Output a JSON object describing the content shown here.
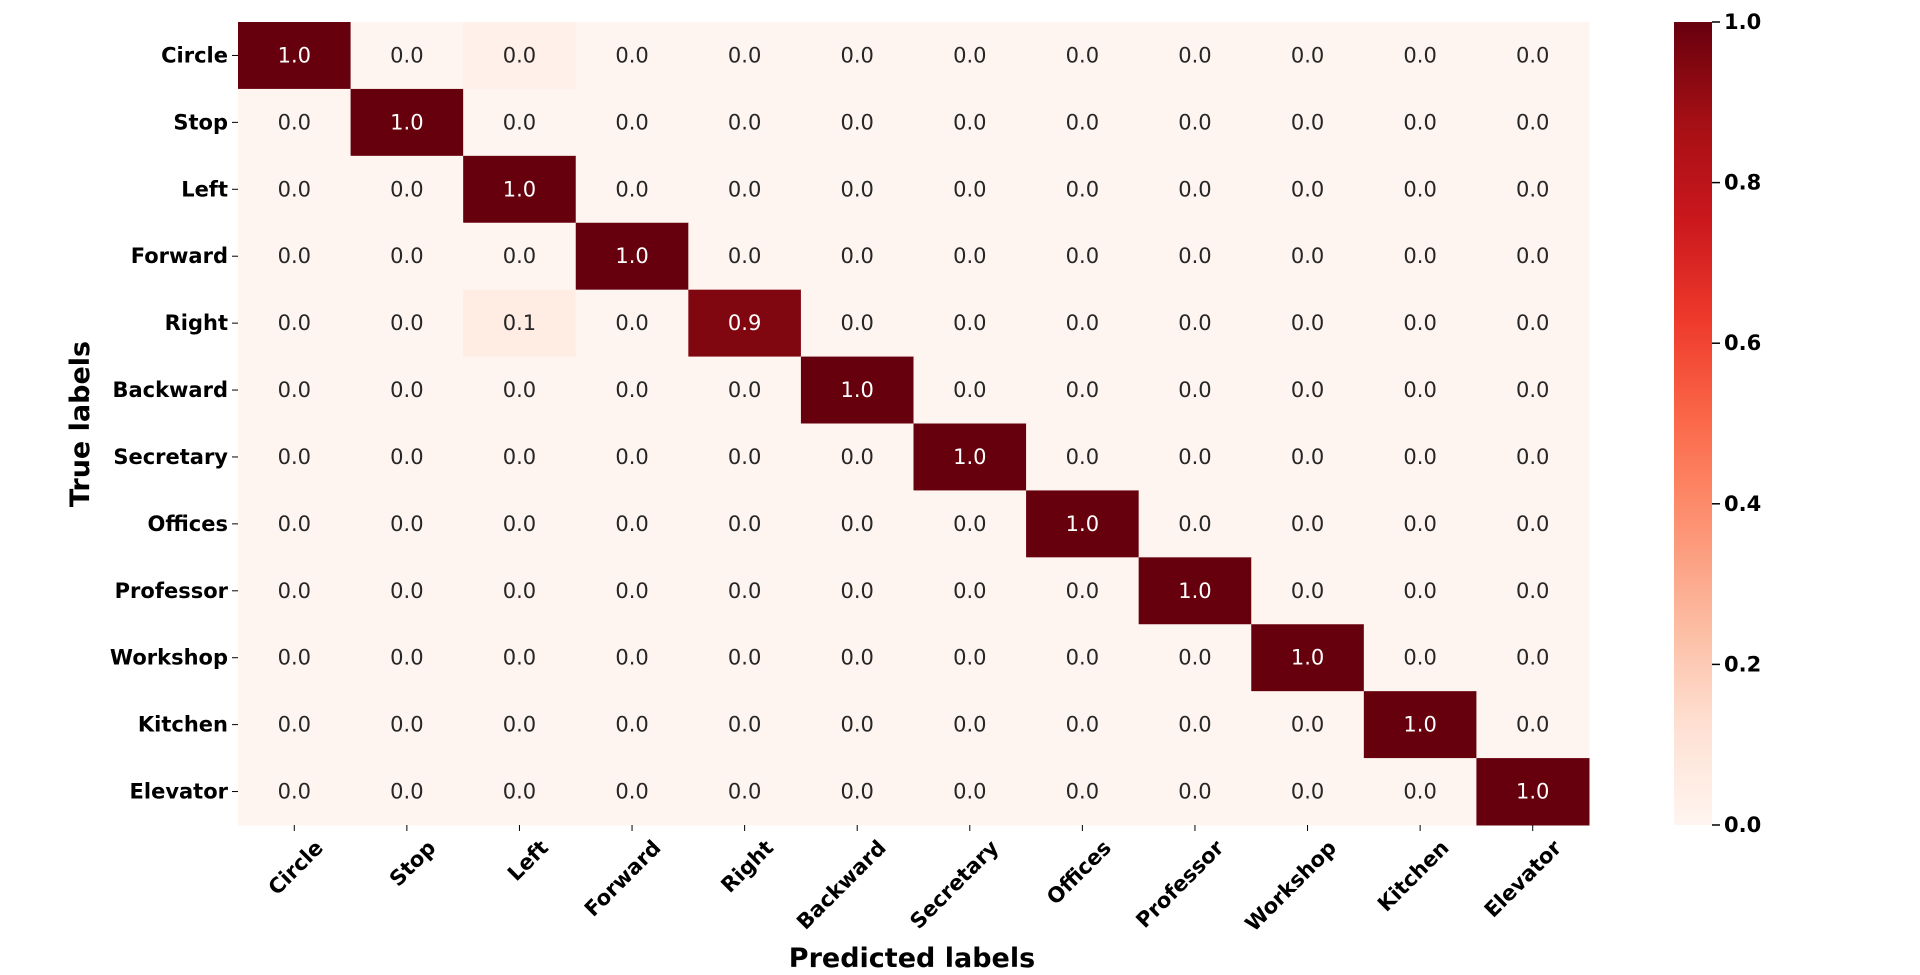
{
  "chart_data": {
    "type": "heatmap",
    "title": "",
    "xlabel": "Predicted labels",
    "ylabel": "True labels",
    "x_categories": [
      "Circle",
      "Stop",
      "Left",
      "Forward",
      "Right",
      "Backward",
      "Secretary",
      "Offices",
      "Professor",
      "Workshop",
      "Kitchen",
      "Elevator"
    ],
    "y_categories": [
      "Circle",
      "Stop",
      "Left",
      "Forward",
      "Right",
      "Backward",
      "Secretary",
      "Offices",
      "Professor",
      "Workshop",
      "Kitchen",
      "Elevator"
    ],
    "values": [
      [
        1.0,
        0.0,
        0.03,
        0.0,
        0.0,
        0.0,
        0.0,
        0.0,
        0.0,
        0.0,
        0.0,
        0.0
      ],
      [
        0.0,
        1.0,
        0.0,
        0.0,
        0.0,
        0.0,
        0.0,
        0.0,
        0.0,
        0.0,
        0.0,
        0.0
      ],
      [
        0.0,
        0.0,
        1.0,
        0.0,
        0.0,
        0.0,
        0.0,
        0.0,
        0.0,
        0.0,
        0.0,
        0.0
      ],
      [
        0.0,
        0.0,
        0.0,
        1.0,
        0.0,
        0.0,
        0.0,
        0.0,
        0.0,
        0.0,
        0.0,
        0.0
      ],
      [
        0.0,
        0.0,
        0.05,
        0.0,
        0.95,
        0.0,
        0.0,
        0.0,
        0.0,
        0.0,
        0.0,
        0.0
      ],
      [
        0.0,
        0.0,
        0.0,
        0.0,
        0.0,
        1.0,
        0.0,
        0.0,
        0.0,
        0.0,
        0.0,
        0.0
      ],
      [
        0.0,
        0.0,
        0.0,
        0.0,
        0.0,
        0.0,
        1.0,
        0.0,
        0.0,
        0.0,
        0.0,
        0.0
      ],
      [
        0.0,
        0.0,
        0.0,
        0.0,
        0.0,
        0.0,
        0.0,
        1.0,
        0.0,
        0.0,
        0.0,
        0.0
      ],
      [
        0.0,
        0.0,
        0.0,
        0.0,
        0.0,
        0.0,
        0.0,
        0.0,
        1.0,
        0.0,
        0.0,
        0.0
      ],
      [
        0.0,
        0.0,
        0.0,
        0.0,
        0.0,
        0.0,
        0.0,
        0.0,
        0.0,
        1.0,
        0.0,
        0.0
      ],
      [
        0.0,
        0.0,
        0.0,
        0.0,
        0.0,
        0.0,
        0.0,
        0.0,
        0.0,
        0.0,
        1.0,
        0.0
      ],
      [
        0.0,
        0.0,
        0.0,
        0.0,
        0.0,
        0.0,
        0.0,
        0.0,
        0.0,
        0.0,
        0.0,
        1.0
      ]
    ],
    "annotations": [
      [
        "1.0",
        "0.0",
        "0.0",
        "0.0",
        "0.0",
        "0.0",
        "0.0",
        "0.0",
        "0.0",
        "0.0",
        "0.0",
        "0.0"
      ],
      [
        "0.0",
        "1.0",
        "0.0",
        "0.0",
        "0.0",
        "0.0",
        "0.0",
        "0.0",
        "0.0",
        "0.0",
        "0.0",
        "0.0"
      ],
      [
        "0.0",
        "0.0",
        "1.0",
        "0.0",
        "0.0",
        "0.0",
        "0.0",
        "0.0",
        "0.0",
        "0.0",
        "0.0",
        "0.0"
      ],
      [
        "0.0",
        "0.0",
        "0.0",
        "1.0",
        "0.0",
        "0.0",
        "0.0",
        "0.0",
        "0.0",
        "0.0",
        "0.0",
        "0.0"
      ],
      [
        "0.0",
        "0.0",
        "0.1",
        "0.0",
        "0.9",
        "0.0",
        "0.0",
        "0.0",
        "0.0",
        "0.0",
        "0.0",
        "0.0"
      ],
      [
        "0.0",
        "0.0",
        "0.0",
        "0.0",
        "0.0",
        "1.0",
        "0.0",
        "0.0",
        "0.0",
        "0.0",
        "0.0",
        "0.0"
      ],
      [
        "0.0",
        "0.0",
        "0.0",
        "0.0",
        "0.0",
        "0.0",
        "1.0",
        "0.0",
        "0.0",
        "0.0",
        "0.0",
        "0.0"
      ],
      [
        "0.0",
        "0.0",
        "0.0",
        "0.0",
        "0.0",
        "0.0",
        "0.0",
        "1.0",
        "0.0",
        "0.0",
        "0.0",
        "0.0"
      ],
      [
        "0.0",
        "0.0",
        "0.0",
        "0.0",
        "0.0",
        "0.0",
        "0.0",
        "0.0",
        "1.0",
        "0.0",
        "0.0",
        "0.0"
      ],
      [
        "0.0",
        "0.0",
        "0.0",
        "0.0",
        "0.0",
        "0.0",
        "0.0",
        "0.0",
        "0.0",
        "1.0",
        "0.0",
        "0.0"
      ],
      [
        "0.0",
        "0.0",
        "0.0",
        "0.0",
        "0.0",
        "0.0",
        "0.0",
        "0.0",
        "0.0",
        "0.0",
        "1.0",
        "0.0"
      ],
      [
        "0.0",
        "0.0",
        "0.0",
        "0.0",
        "0.0",
        "0.0",
        "0.0",
        "0.0",
        "0.0",
        "0.0",
        "0.0",
        "1.0"
      ]
    ],
    "colormap": "Reds",
    "colormap_stops": [
      "#fff5f0",
      "#fee0d2",
      "#fcbba1",
      "#fc9272",
      "#fb6a4a",
      "#ef3b2c",
      "#cb181d",
      "#a50f15",
      "#67000d"
    ],
    "vmin": 0.0,
    "vmax": 1.0,
    "colorbar_ticks": [
      "0.0",
      "0.2",
      "0.4",
      "0.6",
      "0.8",
      "1.0"
    ],
    "colorbar_position": "right",
    "grid": false
  }
}
